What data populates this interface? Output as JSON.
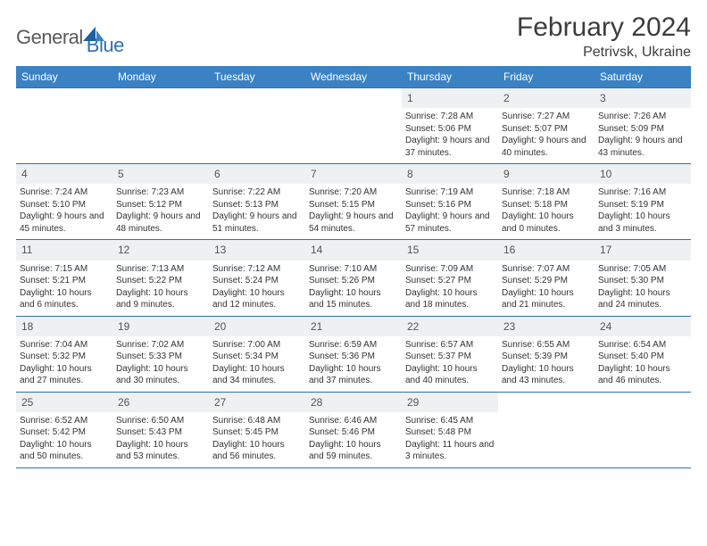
{
  "brand": {
    "word1": "General",
    "word2": "Blue",
    "color_gray": "#5a5a5a",
    "color_blue": "#2f6fb0"
  },
  "title": "February 2024",
  "location": "Petrivsk, Ukraine",
  "header_bg": "#3b82c4",
  "daynum_bg": "#eef0f2",
  "border_color": "#2f6fb0",
  "weekdays": [
    "Sunday",
    "Monday",
    "Tuesday",
    "Wednesday",
    "Thursday",
    "Friday",
    "Saturday"
  ],
  "weeks": [
    [
      null,
      null,
      null,
      null,
      {
        "n": "1",
        "sr": "7:28 AM",
        "ss": "5:06 PM",
        "dl": "9 hours and 37 minutes."
      },
      {
        "n": "2",
        "sr": "7:27 AM",
        "ss": "5:07 PM",
        "dl": "9 hours and 40 minutes."
      },
      {
        "n": "3",
        "sr": "7:26 AM",
        "ss": "5:09 PM",
        "dl": "9 hours and 43 minutes."
      }
    ],
    [
      {
        "n": "4",
        "sr": "7:24 AM",
        "ss": "5:10 PM",
        "dl": "9 hours and 45 minutes."
      },
      {
        "n": "5",
        "sr": "7:23 AM",
        "ss": "5:12 PM",
        "dl": "9 hours and 48 minutes."
      },
      {
        "n": "6",
        "sr": "7:22 AM",
        "ss": "5:13 PM",
        "dl": "9 hours and 51 minutes."
      },
      {
        "n": "7",
        "sr": "7:20 AM",
        "ss": "5:15 PM",
        "dl": "9 hours and 54 minutes."
      },
      {
        "n": "8",
        "sr": "7:19 AM",
        "ss": "5:16 PM",
        "dl": "9 hours and 57 minutes."
      },
      {
        "n": "9",
        "sr": "7:18 AM",
        "ss": "5:18 PM",
        "dl": "10 hours and 0 minutes."
      },
      {
        "n": "10",
        "sr": "7:16 AM",
        "ss": "5:19 PM",
        "dl": "10 hours and 3 minutes."
      }
    ],
    [
      {
        "n": "11",
        "sr": "7:15 AM",
        "ss": "5:21 PM",
        "dl": "10 hours and 6 minutes."
      },
      {
        "n": "12",
        "sr": "7:13 AM",
        "ss": "5:22 PM",
        "dl": "10 hours and 9 minutes."
      },
      {
        "n": "13",
        "sr": "7:12 AM",
        "ss": "5:24 PM",
        "dl": "10 hours and 12 minutes."
      },
      {
        "n": "14",
        "sr": "7:10 AM",
        "ss": "5:26 PM",
        "dl": "10 hours and 15 minutes."
      },
      {
        "n": "15",
        "sr": "7:09 AM",
        "ss": "5:27 PM",
        "dl": "10 hours and 18 minutes."
      },
      {
        "n": "16",
        "sr": "7:07 AM",
        "ss": "5:29 PM",
        "dl": "10 hours and 21 minutes."
      },
      {
        "n": "17",
        "sr": "7:05 AM",
        "ss": "5:30 PM",
        "dl": "10 hours and 24 minutes."
      }
    ],
    [
      {
        "n": "18",
        "sr": "7:04 AM",
        "ss": "5:32 PM",
        "dl": "10 hours and 27 minutes."
      },
      {
        "n": "19",
        "sr": "7:02 AM",
        "ss": "5:33 PM",
        "dl": "10 hours and 30 minutes."
      },
      {
        "n": "20",
        "sr": "7:00 AM",
        "ss": "5:34 PM",
        "dl": "10 hours and 34 minutes."
      },
      {
        "n": "21",
        "sr": "6:59 AM",
        "ss": "5:36 PM",
        "dl": "10 hours and 37 minutes."
      },
      {
        "n": "22",
        "sr": "6:57 AM",
        "ss": "5:37 PM",
        "dl": "10 hours and 40 minutes."
      },
      {
        "n": "23",
        "sr": "6:55 AM",
        "ss": "5:39 PM",
        "dl": "10 hours and 43 minutes."
      },
      {
        "n": "24",
        "sr": "6:54 AM",
        "ss": "5:40 PM",
        "dl": "10 hours and 46 minutes."
      }
    ],
    [
      {
        "n": "25",
        "sr": "6:52 AM",
        "ss": "5:42 PM",
        "dl": "10 hours and 50 minutes."
      },
      {
        "n": "26",
        "sr": "6:50 AM",
        "ss": "5:43 PM",
        "dl": "10 hours and 53 minutes."
      },
      {
        "n": "27",
        "sr": "6:48 AM",
        "ss": "5:45 PM",
        "dl": "10 hours and 56 minutes."
      },
      {
        "n": "28",
        "sr": "6:46 AM",
        "ss": "5:46 PM",
        "dl": "10 hours and 59 minutes."
      },
      {
        "n": "29",
        "sr": "6:45 AM",
        "ss": "5:48 PM",
        "dl": "11 hours and 3 minutes."
      },
      null,
      null
    ]
  ],
  "labels": {
    "sunrise": "Sunrise: ",
    "sunset": "Sunset: ",
    "daylight": "Daylight: "
  }
}
